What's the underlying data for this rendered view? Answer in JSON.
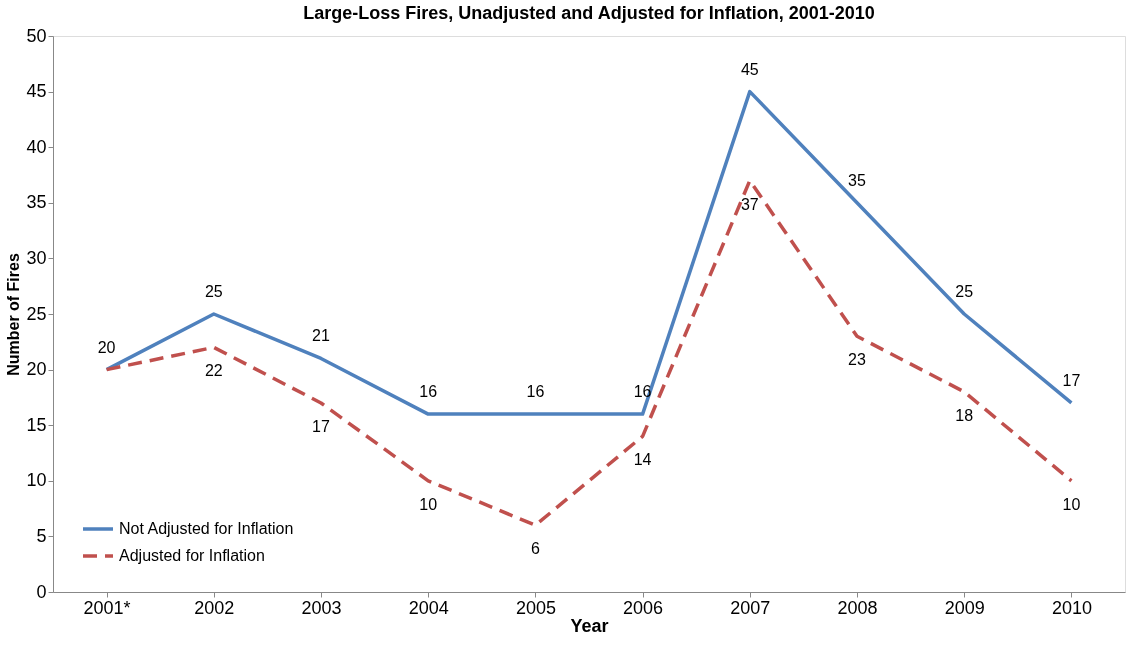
{
  "chart_data": {
    "type": "line",
    "title": "Large-Loss Fires, Unadjusted and Adjusted for Inflation, 2001-2010",
    "xlabel": "Year",
    "ylabel": "Number of Fires",
    "categories": [
      "2001*",
      "2002",
      "2003",
      "2004",
      "2005",
      "2006",
      "2007",
      "2008",
      "2009",
      "2010"
    ],
    "series": [
      {
        "name": "Not Adjusted for Inflation",
        "color": "#4f81bd",
        "line_style": "solid",
        "values": [
          20,
          25,
          21,
          16,
          16,
          16,
          45,
          35,
          25,
          17
        ]
      },
      {
        "name": "Adjusted for Inflation",
        "color": "#c0504d",
        "line_style": "dashed",
        "values": [
          20,
          22,
          17,
          10,
          6,
          14,
          37,
          23,
          18,
          10
        ],
        "value_labels": [
          null,
          "22",
          "17",
          "10",
          "6",
          "14",
          "37",
          "23",
          "18",
          "10"
        ]
      }
    ],
    "data_labels": true,
    "ylim": [
      0,
      50
    ],
    "yticks": [
      0,
      5,
      10,
      15,
      20,
      25,
      30,
      35,
      40,
      45,
      50
    ],
    "grid": false,
    "legend": "bottom left",
    "marker": "none"
  }
}
